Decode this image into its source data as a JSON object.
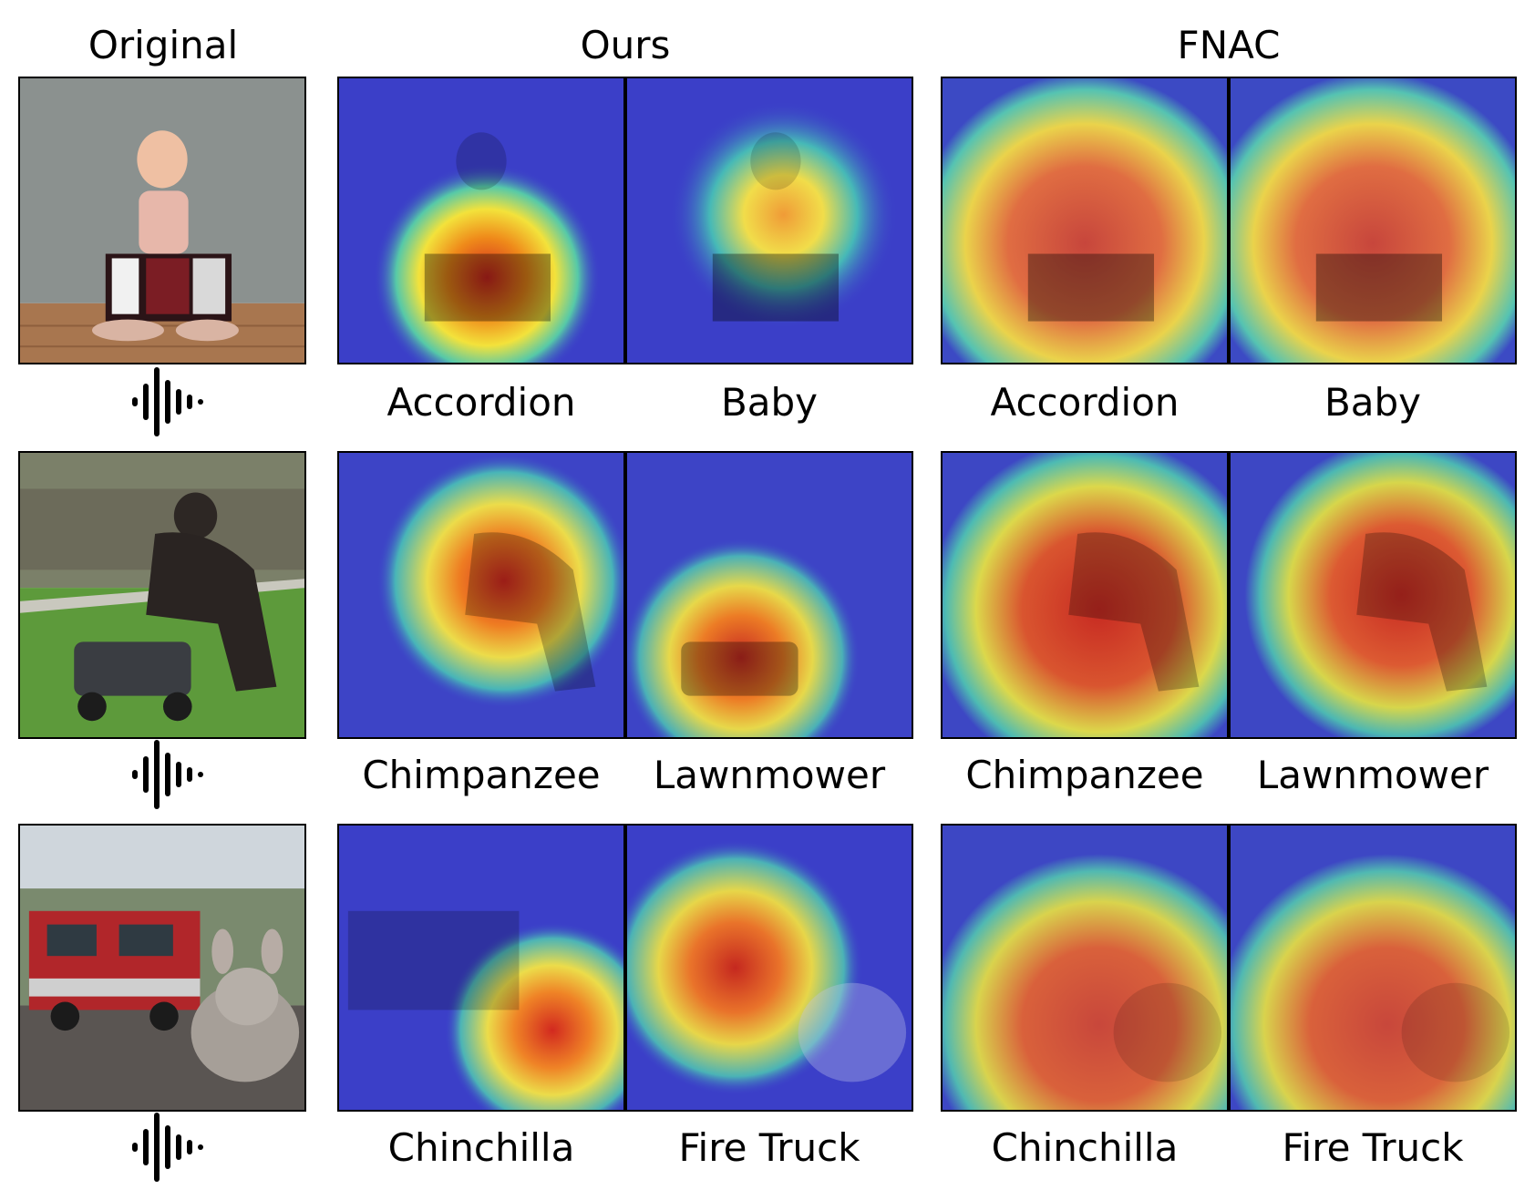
{
  "headers": {
    "original": "Original",
    "ours": "Ours",
    "fnac": "FNAC"
  },
  "rows": [
    {
      "scene": "baby-with-accordion",
      "ours_labels": [
        "Accordion",
        "Baby"
      ],
      "fnac_labels": [
        "Accordion",
        "Baby"
      ]
    },
    {
      "scene": "chimpanzee-with-lawnmower",
      "ours_labels": [
        "Chimpanzee",
        "Lawnmower"
      ],
      "fnac_labels": [
        "Chimpanzee",
        "Lawnmower"
      ]
    },
    {
      "scene": "chinchilla-with-fire-truck",
      "ours_labels": [
        "Chinchilla",
        "Fire Truck"
      ],
      "fnac_labels": [
        "Chinchilla",
        "Fire Truck"
      ]
    }
  ],
  "icons": {
    "audio": "audio-waveform-icon"
  }
}
